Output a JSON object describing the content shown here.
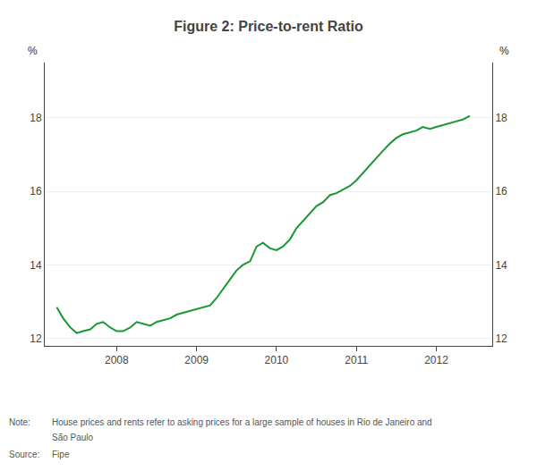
{
  "chart_data": {
    "type": "line",
    "title": "Figure 2: Price-to-rent Ratio",
    "x": [
      2007.25,
      2007.33,
      2007.42,
      2007.5,
      2007.58,
      2007.67,
      2007.75,
      2007.83,
      2007.92,
      2008.0,
      2008.08,
      2008.17,
      2008.25,
      2008.33,
      2008.42,
      2008.5,
      2008.58,
      2008.67,
      2008.75,
      2008.83,
      2008.92,
      2009.0,
      2009.08,
      2009.17,
      2009.25,
      2009.33,
      2009.42,
      2009.5,
      2009.58,
      2009.67,
      2009.75,
      2009.83,
      2009.92,
      2010.0,
      2010.08,
      2010.17,
      2010.25,
      2010.33,
      2010.42,
      2010.5,
      2010.58,
      2010.67,
      2010.75,
      2010.83,
      2010.92,
      2011.0,
      2011.08,
      2011.17,
      2011.25,
      2011.33,
      2011.42,
      2011.5,
      2011.58,
      2011.67,
      2011.75,
      2011.83,
      2011.92,
      2012.0,
      2012.08,
      2012.17,
      2012.25,
      2012.33,
      2012.42
    ],
    "values": [
      12.85,
      12.55,
      12.3,
      12.15,
      12.2,
      12.25,
      12.4,
      12.45,
      12.3,
      12.2,
      12.2,
      12.3,
      12.45,
      12.4,
      12.35,
      12.45,
      12.5,
      12.55,
      12.65,
      12.7,
      12.75,
      12.8,
      12.85,
      12.9,
      13.1,
      13.35,
      13.6,
      13.85,
      14.0,
      14.1,
      14.5,
      14.6,
      14.45,
      14.4,
      14.5,
      14.7,
      15.0,
      15.2,
      15.4,
      15.6,
      15.7,
      15.9,
      15.95,
      16.05,
      16.15,
      16.3,
      16.5,
      16.7,
      16.9,
      17.1,
      17.3,
      17.45,
      17.55,
      17.6,
      17.65,
      17.75,
      17.7,
      17.75,
      17.8,
      17.85,
      17.9,
      17.95,
      18.05
    ],
    "color": "#1a9632",
    "xlim": [
      2007.1,
      2012.7
    ],
    "xticks": [
      2008,
      2009,
      2010,
      2011,
      2012
    ],
    "ylim": [
      11.8,
      19.5
    ],
    "yticks": [
      12,
      14,
      16,
      18
    ],
    "y2lim": [
      11.8,
      19.5
    ],
    "y2ticks": [
      12,
      14,
      16,
      18
    ],
    "grid": "y",
    "annotations": [
      "%",
      "%",
      "Note:",
      "House prices and rents refer to asking prices for a large sample of houses in Rio de Janeiro and",
      "São Paulo",
      "Source:",
      "Fipe"
    ]
  }
}
